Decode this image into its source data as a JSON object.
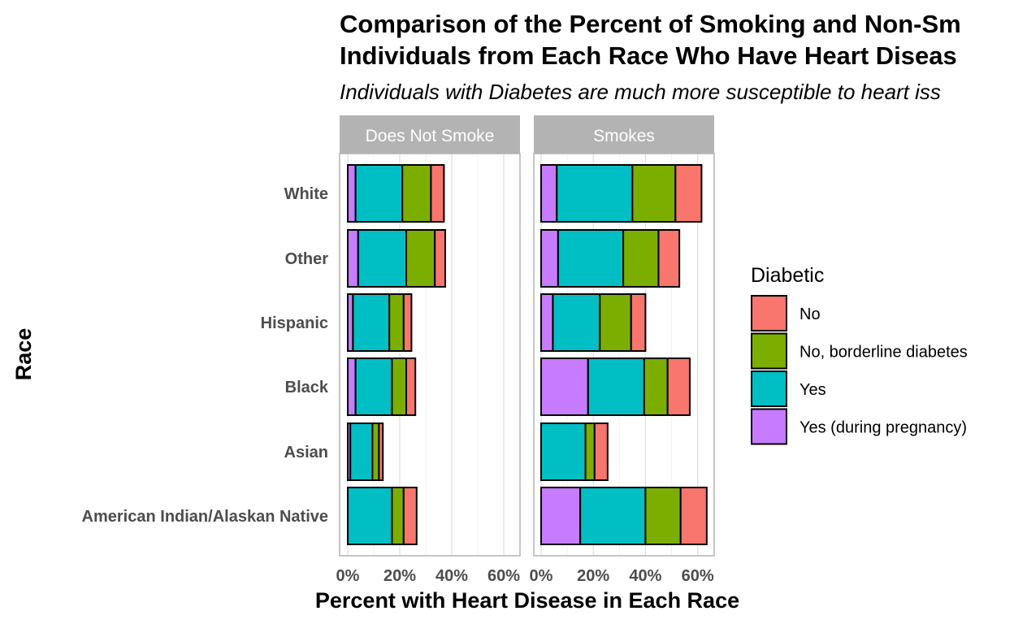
{
  "chart_data": {
    "type": "bar",
    "orientation": "horizontal",
    "stacked": true,
    "title": "Comparison of the Percent of Smoking and Non-Smoking Individuals from Each Race Who Have Heart Disease",
    "title_lines": [
      "Comparison of the Percent of Smoking and Non-Sm",
      "Individuals from Each Race Who Have Heart Diseas"
    ],
    "subtitle": "Individuals with Diabetes are much more susceptible to heart iss",
    "xlabel": "Percent with Heart Disease in Each Race",
    "ylabel": "Race",
    "xlim": [
      0,
      65
    ],
    "x_ticks": [
      0,
      20,
      40,
      60
    ],
    "x_tick_labels": [
      "0%",
      "20%",
      "40%",
      "60%"
    ],
    "grid": true,
    "categories": [
      "White",
      "Other",
      "Hispanic",
      "Black",
      "Asian",
      "American Indian/Alaskan Native"
    ],
    "legend": {
      "title": "Diabetic",
      "placement": "right",
      "entries": [
        {
          "label": "No",
          "color": "#F8766D"
        },
        {
          "label": "No, borderline diabetes",
          "color": "#7CAE00"
        },
        {
          "label": "Yes",
          "color": "#00BFC4"
        },
        {
          "label": "Yes (during pregnancy)",
          "color": "#C77CFF"
        }
      ]
    },
    "stack_order": [
      "Yes (during pregnancy)",
      "Yes",
      "No, borderline diabetes",
      "No"
    ],
    "panels": [
      {
        "strip": "Does Not Smoke",
        "series": [
          {
            "name": "Yes (during pregnancy)",
            "values": [
              3,
              4,
              2,
              3,
              1,
              0
            ]
          },
          {
            "name": "Yes",
            "values": [
              18,
              18.5,
              14,
              14,
              8.5,
              17
            ]
          },
          {
            "name": "No, borderline diabetes",
            "values": [
              11,
              11,
              5.5,
              5.5,
              2.5,
              4.5
            ]
          },
          {
            "name": "No",
            "values": [
              5,
              4,
              3,
              3.5,
              1.5,
              5
            ]
          }
        ]
      },
      {
        "strip": "Smokes",
        "series": [
          {
            "name": "Yes (during pregnancy)",
            "values": [
              6,
              6.5,
              4.5,
              18,
              0,
              15
            ]
          },
          {
            "name": "Yes",
            "values": [
              29,
              25,
              18,
              21.5,
              17,
              25
            ]
          },
          {
            "name": "No, borderline diabetes",
            "values": [
              16.5,
              13.5,
              12,
              9,
              3.5,
              13.5
            ]
          },
          {
            "name": "No",
            "values": [
              10,
              8,
              5.5,
              8.5,
              5,
              10
            ]
          }
        ]
      }
    ]
  }
}
